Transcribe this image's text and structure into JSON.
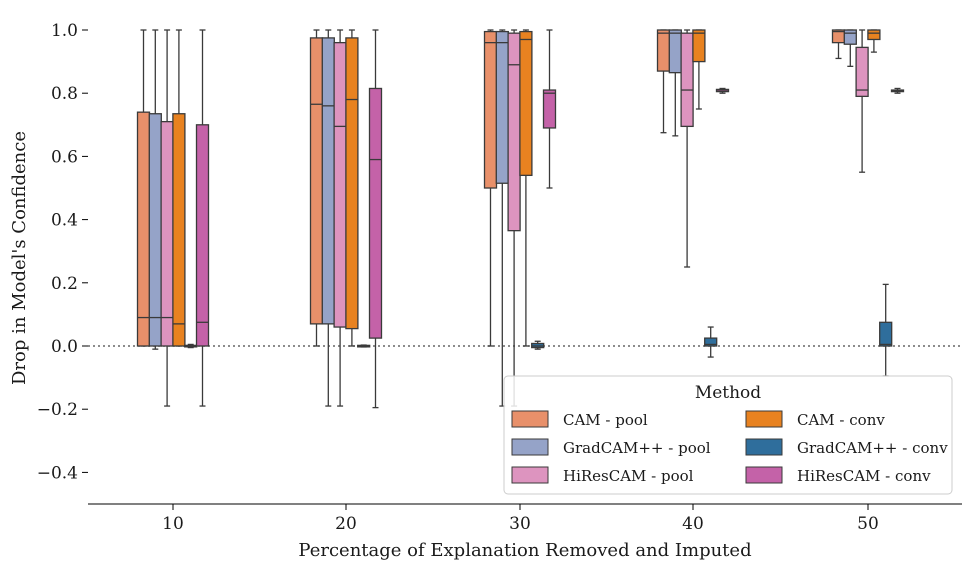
{
  "chart_data": {
    "type": "boxplot",
    "xlabel": "Percentage of Explanation Removed and Imputed",
    "ylabel": "Drop in Model's Confidence",
    "categories": [
      "10",
      "20",
      "30",
      "40",
      "50"
    ],
    "ylim": [
      -0.5,
      1.05
    ],
    "yticks": [
      -0.4,
      -0.2,
      0.0,
      0.2,
      0.4,
      0.6,
      0.8,
      1.0
    ],
    "ytick_labels": [
      "−0.4",
      "−0.2",
      "0.0",
      "0.2",
      "0.4",
      "0.6",
      "0.8",
      "1.0"
    ],
    "reference_line": 0.0,
    "grid": false,
    "legend": {
      "title": "Method",
      "placement": "lower-right",
      "columns": 2
    },
    "series": [
      {
        "name": "CAM - pool",
        "color": "#e8906a",
        "boxes": [
          {
            "whislo": 0.0,
            "q1": 0.0,
            "med": 0.09,
            "q3": 0.74,
            "whishi": 1.0
          },
          {
            "whislo": 0.0,
            "q1": 0.07,
            "med": 0.765,
            "q3": 0.975,
            "whishi": 1.0
          },
          {
            "whislo": 0.0,
            "q1": 0.5,
            "med": 0.96,
            "q3": 0.995,
            "whishi": 1.0
          },
          {
            "whislo": 0.675,
            "q1": 0.87,
            "med": 0.99,
            "q3": 1.0,
            "whishi": 1.0
          },
          {
            "whislo": 0.91,
            "q1": 0.96,
            "med": 0.995,
            "q3": 1.0,
            "whishi": 1.0
          }
        ]
      },
      {
        "name": "GradCAM++ - pool",
        "color": "#95a3c8",
        "boxes": [
          {
            "whislo": -0.01,
            "q1": 0.0,
            "med": 0.09,
            "q3": 0.735,
            "whishi": 1.0
          },
          {
            "whislo": -0.19,
            "q1": 0.07,
            "med": 0.76,
            "q3": 0.975,
            "whishi": 1.0
          },
          {
            "whislo": -0.19,
            "q1": 0.515,
            "med": 0.96,
            "q3": 0.995,
            "whishi": 1.0
          },
          {
            "whislo": 0.665,
            "q1": 0.865,
            "med": 0.99,
            "q3": 1.0,
            "whishi": 1.0
          },
          {
            "whislo": 0.885,
            "q1": 0.955,
            "med": 0.99,
            "q3": 1.0,
            "whishi": 1.0
          }
        ]
      },
      {
        "name": "HiResCAM - pool",
        "color": "#dd94bf",
        "boxes": [
          {
            "whislo": -0.19,
            "q1": 0.0,
            "med": 0.09,
            "q3": 0.71,
            "whishi": 1.0
          },
          {
            "whislo": -0.19,
            "q1": 0.06,
            "med": 0.695,
            "q3": 0.96,
            "whishi": 1.0
          },
          {
            "whislo": -0.19,
            "q1": 0.365,
            "med": 0.89,
            "q3": 0.99,
            "whishi": 1.0
          },
          {
            "whislo": 0.25,
            "q1": 0.695,
            "med": 0.81,
            "q3": 0.99,
            "whishi": 1.0
          },
          {
            "whislo": 0.55,
            "q1": 0.79,
            "med": 0.81,
            "q3": 0.945,
            "whishi": 1.0
          }
        ]
      },
      {
        "name": "CAM - conv",
        "color": "#e88220",
        "boxes": [
          {
            "whislo": 0.0,
            "q1": 0.0,
            "med": 0.07,
            "q3": 0.735,
            "whishi": 1.0
          },
          {
            "whislo": 0.0,
            "q1": 0.055,
            "med": 0.78,
            "q3": 0.975,
            "whishi": 1.0
          },
          {
            "whislo": 0.0,
            "q1": 0.54,
            "med": 0.97,
            "q3": 0.995,
            "whishi": 1.0
          },
          {
            "whislo": 0.75,
            "q1": 0.9,
            "med": 0.99,
            "q3": 1.0,
            "whishi": 1.0
          },
          {
            "whislo": 0.93,
            "q1": 0.97,
            "med": 0.99,
            "q3": 1.0,
            "whishi": 1.0
          }
        ]
      },
      {
        "name": "GradCAM++ - conv",
        "color": "#2f6e9c",
        "boxes": [
          {
            "whislo": -0.005,
            "q1": -0.002,
            "med": 0.0,
            "q3": 0.002,
            "whishi": 0.005
          },
          {
            "whislo": -0.003,
            "q1": -0.002,
            "med": 0.0,
            "q3": 0.002,
            "whishi": 0.003
          },
          {
            "whislo": -0.01,
            "q1": -0.005,
            "med": 0.0,
            "q3": 0.008,
            "whishi": 0.015
          },
          {
            "whislo": -0.035,
            "q1": 0.0,
            "med": 0.005,
            "q3": 0.025,
            "whishi": 0.06
          },
          {
            "whislo": -0.095,
            "q1": 0.0,
            "med": 0.005,
            "q3": 0.075,
            "whishi": 0.195
          }
        ]
      },
      {
        "name": "HiResCAM - conv",
        "color": "#c462a8",
        "boxes": [
          {
            "whislo": -0.19,
            "q1": 0.0,
            "med": 0.075,
            "q3": 0.7,
            "whishi": 1.0
          },
          {
            "whislo": -0.195,
            "q1": 0.025,
            "med": 0.59,
            "q3": 0.815,
            "whishi": 1.0
          },
          {
            "whislo": 0.5,
            "q1": 0.69,
            "med": 0.8,
            "q3": 0.81,
            "whishi": 1.0
          },
          {
            "whislo": 0.8,
            "q1": 0.805,
            "med": 0.81,
            "q3": 0.812,
            "whishi": 0.815
          },
          {
            "whislo": 0.8,
            "q1": 0.805,
            "med": 0.808,
            "q3": 0.81,
            "whishi": 0.815
          }
        ]
      }
    ]
  }
}
